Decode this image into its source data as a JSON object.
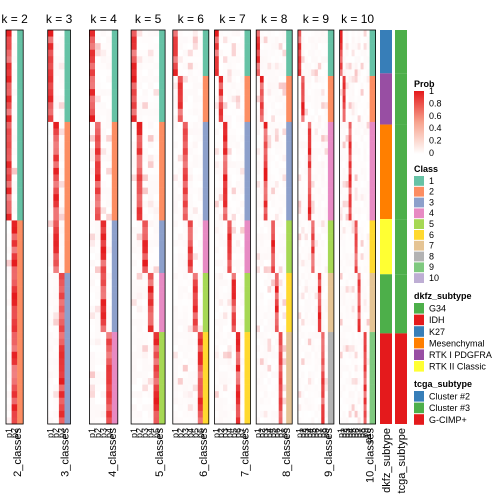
{
  "chart_data": {
    "type": "heatmap",
    "panels": [
      {
        "title": "k = 2",
        "k": 2,
        "col_labels": [
          "p1",
          "p2"
        ],
        "class_label": "2_classes"
      },
      {
        "title": "k = 3",
        "k": 3,
        "col_labels": [
          "p1",
          "p2",
          "p3"
        ],
        "class_label": "3_classes"
      },
      {
        "title": "k = 4",
        "k": 4,
        "col_labels": [
          "p1",
          "p2",
          "p3",
          "p4"
        ],
        "class_label": "4_classes"
      },
      {
        "title": "k = 5",
        "k": 5,
        "col_labels": [
          "p1",
          "p2",
          "p3",
          "p4",
          "p5"
        ],
        "class_label": "5_classes"
      },
      {
        "title": "k = 6",
        "k": 6,
        "col_labels": [
          "p1",
          "p2",
          "p3",
          "p4",
          "p5",
          "p6"
        ],
        "class_label": "6_classes"
      },
      {
        "title": "k = 7",
        "k": 7,
        "col_labels": [
          "p1",
          "p2",
          "p3",
          "p4",
          "p5",
          "p6",
          "p7"
        ],
        "class_label": "7_classes"
      },
      {
        "title": "k = 8",
        "k": 8,
        "col_labels": [
          "p1",
          "p2",
          "p3",
          "p4",
          "p5",
          "p6",
          "p7",
          "p8"
        ],
        "class_label": "8_classes"
      },
      {
        "title": "k = 9",
        "k": 9,
        "col_labels": [
          "p1",
          "p2",
          "p3",
          "p4",
          "p5",
          "p6",
          "p7",
          "p8",
          "p9"
        ],
        "class_label": "9_classes"
      },
      {
        "title": "k = 10",
        "k": 10,
        "col_labels": [
          "p1",
          "p2",
          "p3",
          "p4",
          "p5",
          "p6",
          "p7",
          "p8",
          "p9",
          "p10"
        ],
        "class_label": "10_classes"
      }
    ],
    "annotation_columns": [
      "dkfz_subtype",
      "tcga_subtype"
    ],
    "legends": {
      "prob": {
        "title": "Prob",
        "ticks": [
          "1",
          "0.8",
          "0.6",
          "0.4",
          "0.2",
          "0"
        ]
      },
      "class": {
        "title": "Class",
        "items": [
          {
            "label": "1",
            "color": "#66c2a5"
          },
          {
            "label": "2",
            "color": "#fc8d62"
          },
          {
            "label": "3",
            "color": "#8da0cb"
          },
          {
            "label": "4",
            "color": "#e78ac3"
          },
          {
            "label": "5",
            "color": "#a6d854"
          },
          {
            "label": "6",
            "color": "#ffd92f"
          },
          {
            "label": "7",
            "color": "#e5c494"
          },
          {
            "label": "8",
            "color": "#b3b3b3"
          },
          {
            "label": "9",
            "color": "#7fc97f"
          },
          {
            "label": "10",
            "color": "#beaed4"
          }
        ]
      },
      "dkfz_subtype": {
        "title": "dkfz_subtype",
        "items": [
          {
            "label": "G34",
            "color": "#4daf4a"
          },
          {
            "label": "IDH",
            "color": "#e41a1c"
          },
          {
            "label": "K27",
            "color": "#377eb8"
          },
          {
            "label": "Mesenchymal",
            "color": "#ff7f00"
          },
          {
            "label": "RTK I PDGFRA",
            "color": "#984ea3"
          },
          {
            "label": "RTK II Classic",
            "color": "#ffff33"
          }
        ]
      },
      "tcga_subtype": {
        "title": "tcga_subtype",
        "items": [
          {
            "label": "Cluster #2",
            "color": "#377eb8"
          },
          {
            "label": "Cluster #3",
            "color": "#4daf4a"
          },
          {
            "label": "G-CIMP+",
            "color": "#e41a1c"
          }
        ]
      }
    },
    "row_groups": [
      {
        "dkfz": "K27",
        "tcga": "Cluster #3",
        "fraction": 0.11
      },
      {
        "dkfz": "RTK I PDGFRA",
        "tcga": "Cluster #3",
        "fraction": 0.13
      },
      {
        "dkfz": "Mesenchymal",
        "tcga": "Cluster #3",
        "fraction": 0.24
      },
      {
        "dkfz": "RTK II Classic",
        "tcga": "Cluster #3",
        "fraction": 0.14
      },
      {
        "dkfz": "G34",
        "tcga": "Cluster #3",
        "fraction": 0.15
      },
      {
        "dkfz": "IDH",
        "tcga": "G-CIMP+",
        "fraction": 0.23
      }
    ],
    "color_scale": {
      "low": "#ffffff",
      "high": "#e41a1c",
      "range": [
        0,
        1
      ]
    }
  }
}
